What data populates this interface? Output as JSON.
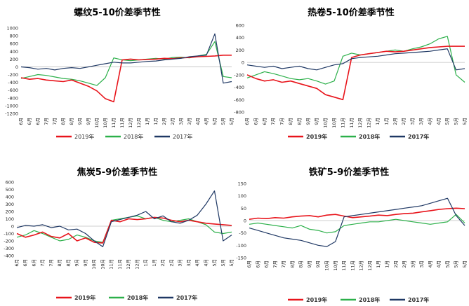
{
  "months_rotated": [
    "6月",
    "6月",
    "6月",
    "7月",
    "7月",
    "8月",
    "8月",
    "9月",
    "9月",
    "10月",
    "10月",
    "11月",
    "11月",
    "12月",
    "12月",
    "1月",
    "1月",
    "2月",
    "2月",
    "3月",
    "3月",
    "4月",
    "4月",
    "5月",
    "5月",
    "5月"
  ],
  "legend": {
    "s2019": "2019年",
    "s2018": "2018年",
    "s2017": "2017年"
  },
  "colors": {
    "s2019": "#e8141b",
    "s2018": "#2cb04a",
    "s2017": "#1f3864"
  },
  "chart_data": [
    {
      "type": "line",
      "title": "螺纹5-10价差季节性",
      "ylim": [
        -1200,
        1000
      ],
      "yticks": [
        "1000",
        "800",
        "600",
        "400",
        "200",
        "0",
        "-200",
        "-400",
        "-600",
        "-800",
        "-1000",
        "-1200"
      ],
      "x_count": 26,
      "series": [
        {
          "name": "2019年",
          "key": "s2019",
          "values": [
            -280,
            -320,
            -300,
            -340,
            -360,
            -380,
            -340,
            -420,
            -500,
            -620,
            -820,
            -900,
            180,
            200,
            180,
            190,
            200,
            220,
            210,
            230,
            240,
            260,
            270,
            280,
            300,
            300
          ]
        },
        {
          "name": "2018年",
          "key": "s2018",
          "values": [
            -300,
            -250,
            -200,
            -220,
            -260,
            -300,
            -320,
            -360,
            -420,
            -480,
            -280,
            230,
            180,
            160,
            180,
            200,
            220,
            200,
            240,
            250,
            230,
            280,
            320,
            650,
            -250,
            -280
          ]
        },
        {
          "name": "2017年",
          "key": "s2017",
          "values": [
            0,
            -20,
            -60,
            -40,
            -80,
            -40,
            -20,
            -40,
            0,
            40,
            80,
            120,
            100,
            100,
            120,
            140,
            150,
            180,
            200,
            220,
            260,
            280,
            300,
            850,
            -420,
            -380
          ]
        }
      ]
    },
    {
      "type": "line",
      "title": "热卷5-10价差季节性",
      "ylim": [
        -800,
        600
      ],
      "yticks": [
        "600",
        "400",
        "200",
        "0",
        "-200",
        "-400",
        "-600",
        "-800"
      ],
      "x_count": 26,
      "series": [
        {
          "name": "2019年",
          "key": "s2019",
          "values": [
            -200,
            -260,
            -300,
            -280,
            -320,
            -300,
            -340,
            -380,
            -420,
            -520,
            -560,
            -600,
            80,
            120,
            140,
            160,
            180,
            170,
            180,
            200,
            220,
            240,
            250,
            260,
            260,
            260
          ]
        },
        {
          "name": "2018年",
          "key": "s2018",
          "values": [
            -250,
            -200,
            -150,
            -180,
            -220,
            -260,
            -280,
            -260,
            -300,
            -350,
            -300,
            100,
            150,
            120,
            140,
            160,
            180,
            200,
            180,
            220,
            250,
            300,
            380,
            420,
            -200,
            -320
          ]
        },
        {
          "name": "2017年",
          "key": "s2017",
          "values": [
            -40,
            -60,
            -80,
            -60,
            -100,
            -80,
            -60,
            -100,
            -120,
            -80,
            -40,
            -20,
            60,
            80,
            90,
            100,
            120,
            140,
            150,
            160,
            170,
            180,
            200,
            220,
            -120,
            -100
          ]
        }
      ]
    },
    {
      "type": "line",
      "title": "焦炭5-9价差季节性",
      "ylim": [
        -400,
        600
      ],
      "yticks": [
        "600",
        "500",
        "400",
        "300",
        "200",
        "100",
        "0",
        "-100",
        "-200",
        "-300",
        "-400"
      ],
      "x_count": 26,
      "series": [
        {
          "name": "2019年",
          "key": "s2019",
          "values": [
            -100,
            -150,
            -120,
            -80,
            -140,
            -160,
            -100,
            -200,
            -160,
            -220,
            -230,
            80,
            60,
            100,
            90,
            100,
            120,
            110,
            80,
            60,
            80,
            60,
            40,
            30,
            20,
            10
          ]
        },
        {
          "name": "2018年",
          "key": "s2018",
          "values": [
            -150,
            -120,
            -60,
            -100,
            -150,
            -200,
            -180,
            -120,
            -150,
            -200,
            -220,
            80,
            100,
            120,
            140,
            100,
            120,
            80,
            60,
            80,
            100,
            60,
            20,
            -80,
            -100,
            -80
          ]
        },
        {
          "name": "2017年",
          "key": "s2017",
          "values": [
            -20,
            10,
            0,
            20,
            -20,
            0,
            -50,
            -40,
            -100,
            -200,
            -280,
            60,
            90,
            120,
            150,
            200,
            100,
            140,
            60,
            40,
            80,
            150,
            300,
            480,
            -200,
            -120
          ]
        }
      ]
    },
    {
      "type": "line",
      "title": "铁矿5-9价差季节性",
      "ylim": [
        -150,
        150
      ],
      "yticks": [
        "150",
        "100",
        "50",
        "0",
        "-50",
        "-100",
        "-150"
      ],
      "x_count": 26,
      "series": [
        {
          "name": "2019年",
          "key": "s2019",
          "values": [
            5,
            10,
            8,
            12,
            10,
            15,
            18,
            20,
            15,
            22,
            25,
            18,
            12,
            15,
            18,
            22,
            20,
            25,
            28,
            30,
            35,
            40,
            45,
            48,
            50,
            48
          ]
        },
        {
          "name": "2018年",
          "key": "s2018",
          "values": [
            -15,
            -10,
            -15,
            -20,
            -25,
            -30,
            -20,
            -35,
            -40,
            -50,
            -45,
            -20,
            -15,
            -10,
            -5,
            -5,
            0,
            5,
            0,
            -5,
            -10,
            -15,
            -10,
            -5,
            25,
            -10
          ]
        },
        {
          "name": "2017年",
          "key": "s2017",
          "values": [
            -30,
            -40,
            -50,
            -60,
            -70,
            -75,
            -80,
            -90,
            -100,
            -105,
            -85,
            15,
            20,
            25,
            30,
            35,
            40,
            45,
            50,
            55,
            60,
            70,
            80,
            90,
            20,
            -20
          ]
        }
      ]
    }
  ]
}
